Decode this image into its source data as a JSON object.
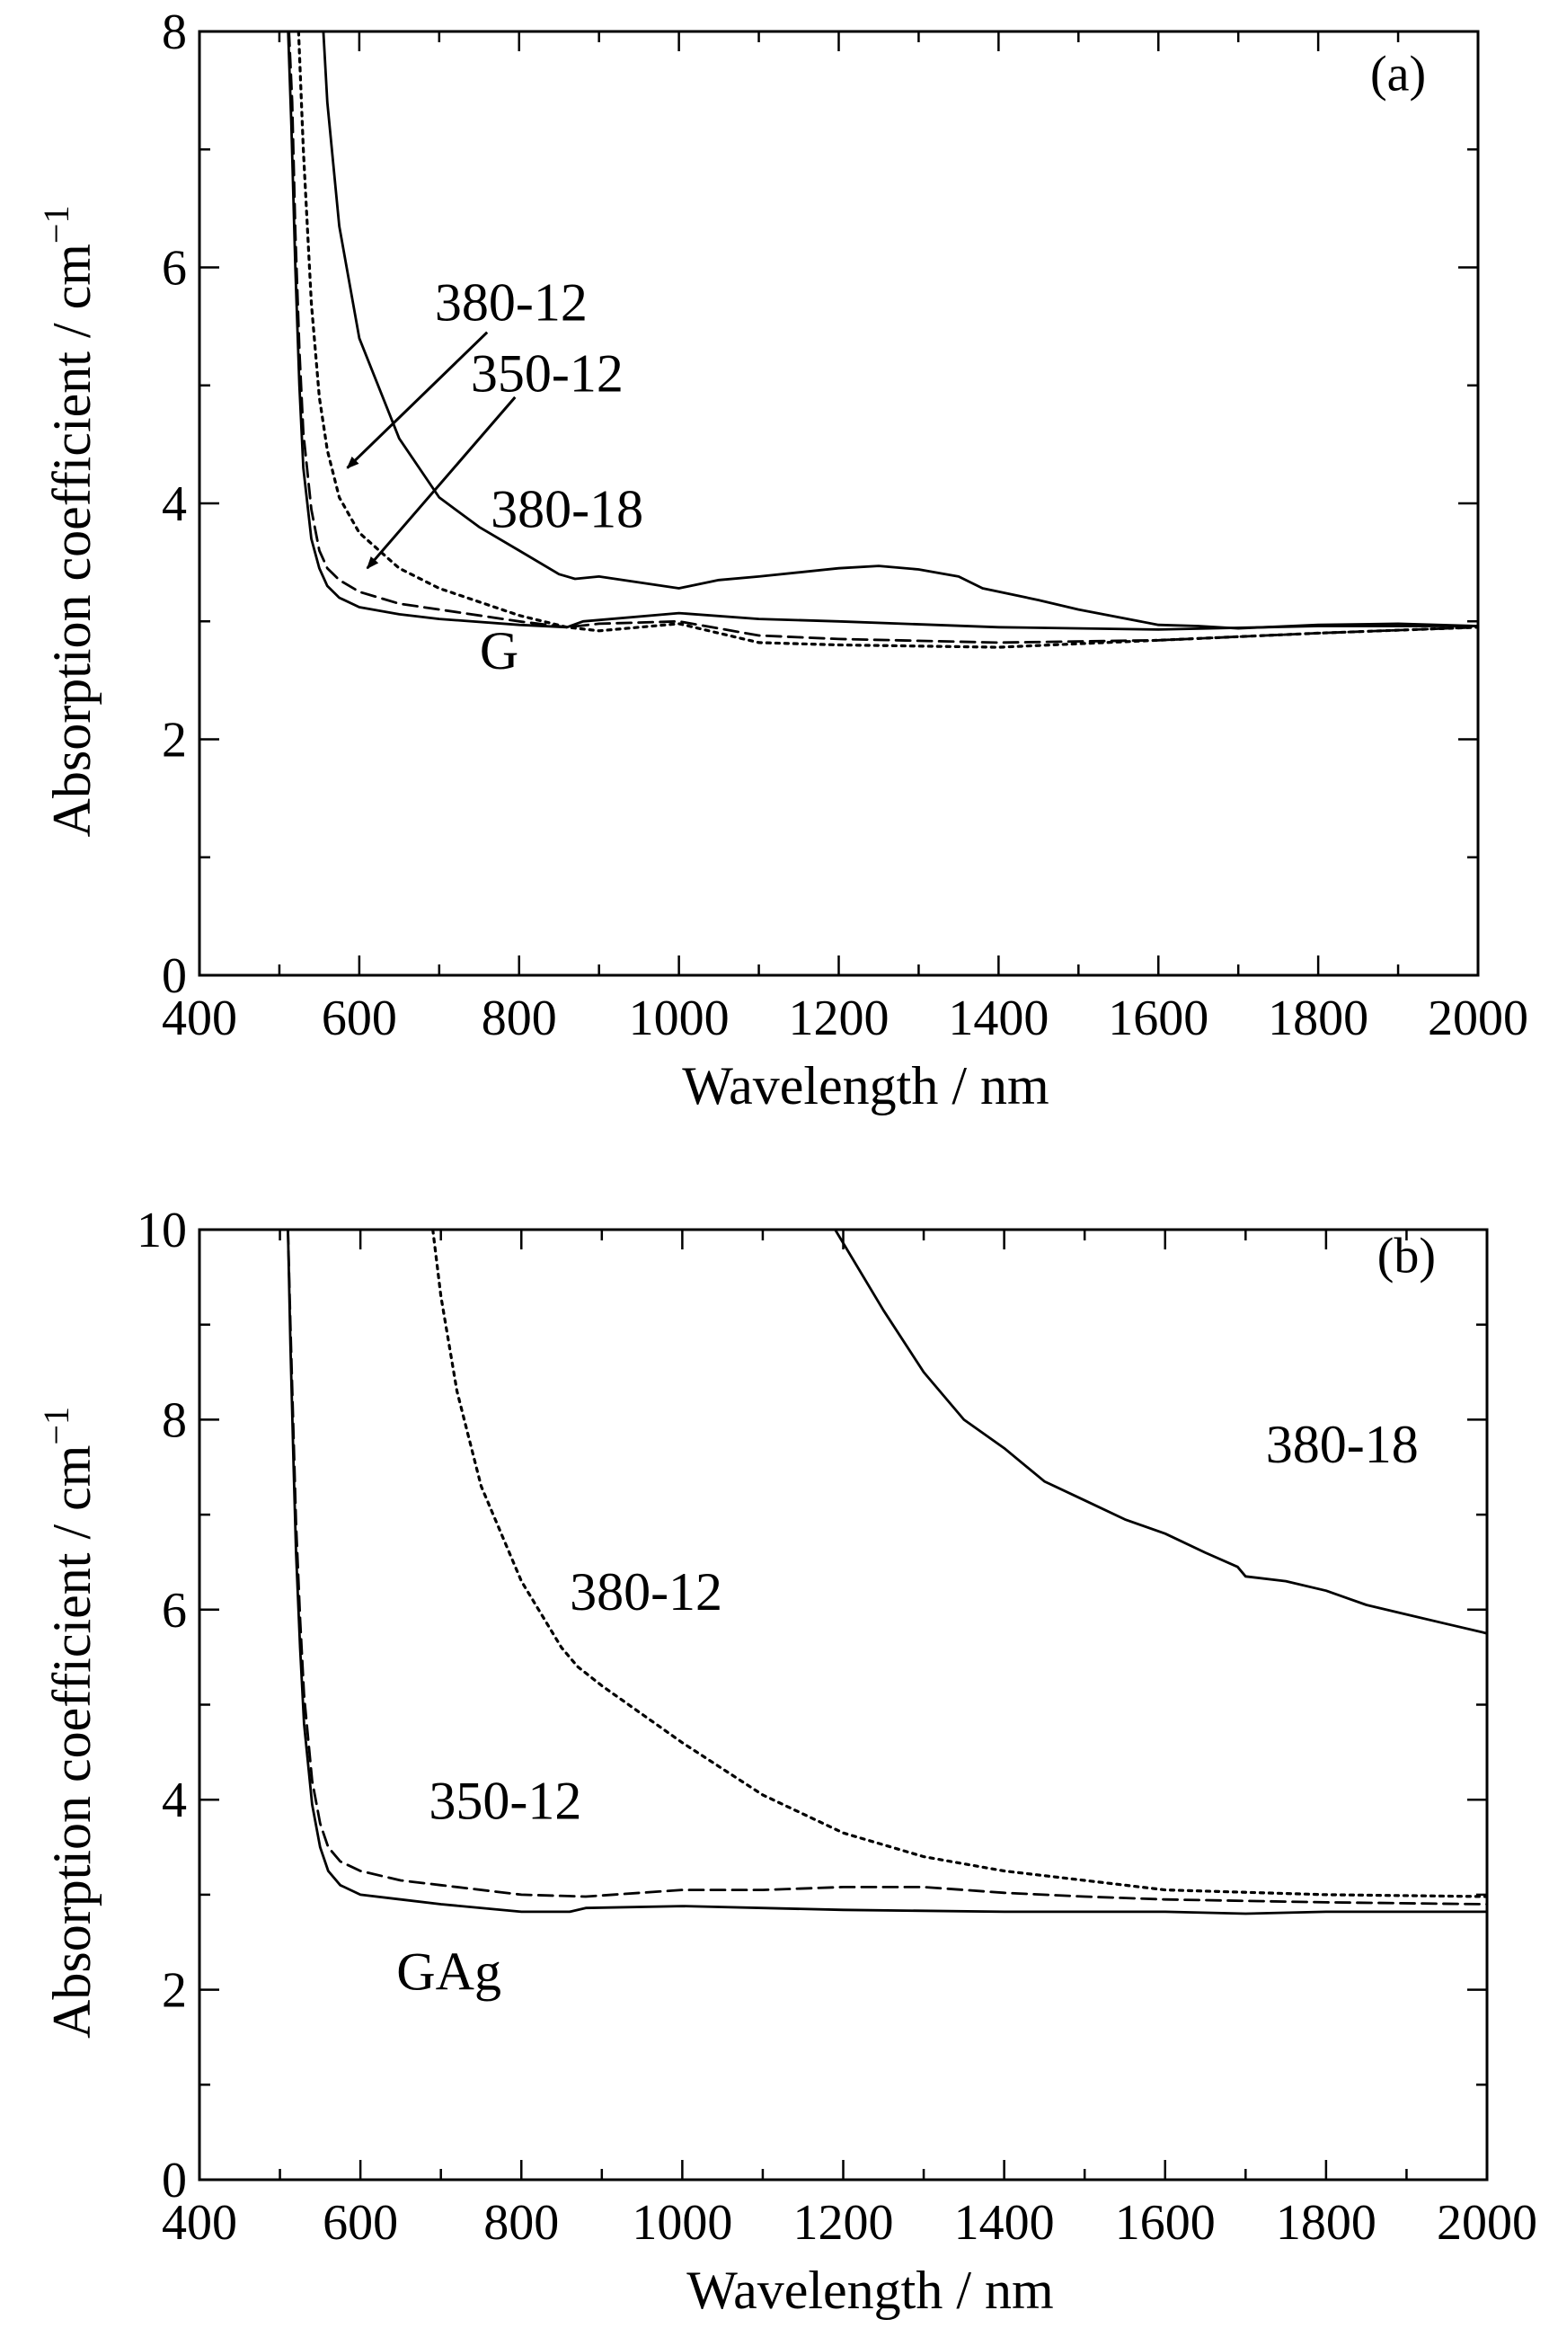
{
  "chart_data": [
    {
      "panel": "(a)",
      "type": "line",
      "xlabel": "Wavelength / nm",
      "ylabel": "Absorption coefficient / cm",
      "ylabel_sup": "−1",
      "xlim": [
        400,
        2000
      ],
      "ylim": [
        0,
        8
      ],
      "x_ticks": [
        "400",
        "600",
        "800",
        "1000",
        "1200",
        "1400",
        "1600",
        "1800",
        "2000"
      ],
      "y_ticks": [
        "0",
        "2",
        "4",
        "6",
        "8"
      ],
      "x_minor_step": 100,
      "y_minor_step": 1,
      "series": [
        {
          "name": "G",
          "style": "solid",
          "x": [
            511,
            515,
            520,
            525,
            530,
            540,
            550,
            560,
            575,
            600,
            650,
            700,
            800,
            860,
            880,
            1000,
            1100,
            1200,
            1400,
            1600,
            1800,
            2000
          ],
          "y": [
            8.0,
            7.2,
            6.0,
            5.0,
            4.3,
            3.7,
            3.45,
            3.3,
            3.2,
            3.12,
            3.06,
            3.02,
            2.97,
            2.95,
            3.0,
            3.07,
            3.02,
            3.0,
            2.95,
            2.93,
            2.96,
            2.96
          ]
        },
        {
          "name": "350-12",
          "style": "dashed",
          "x": [
            512,
            516,
            520,
            525,
            530,
            540,
            550,
            560,
            575,
            600,
            650,
            700,
            800,
            860,
            900,
            1000,
            1100,
            1200,
            1400,
            1600,
            1800,
            2000
          ],
          "y": [
            8.0,
            7.4,
            6.3,
            5.3,
            4.6,
            3.95,
            3.6,
            3.45,
            3.35,
            3.25,
            3.15,
            3.1,
            3.0,
            2.95,
            2.98,
            3.0,
            2.88,
            2.85,
            2.82,
            2.84,
            2.9,
            2.95
          ]
        },
        {
          "name": "380-12",
          "style": "dotted",
          "x": [
            524,
            530,
            540,
            550,
            560,
            575,
            600,
            650,
            700,
            800,
            860,
            900,
            1000,
            1100,
            1200,
            1400,
            1600,
            1800,
            2000
          ],
          "y": [
            8.0,
            7.0,
            5.7,
            4.9,
            4.45,
            4.05,
            3.75,
            3.45,
            3.28,
            3.05,
            2.95,
            2.92,
            2.98,
            2.82,
            2.8,
            2.78,
            2.84,
            2.9,
            2.95
          ]
        },
        {
          "name": "380-18",
          "style": "solid",
          "x": [
            555,
            560,
            575,
            600,
            650,
            700,
            750,
            800,
            850,
            870,
            900,
            1000,
            1050,
            1100,
            1200,
            1250,
            1300,
            1350,
            1380,
            1450,
            1500,
            1600,
            1650,
            1700,
            1800,
            1900,
            2000
          ],
          "y": [
            8.0,
            7.4,
            6.35,
            5.4,
            4.55,
            4.05,
            3.8,
            3.6,
            3.4,
            3.36,
            3.38,
            3.28,
            3.35,
            3.38,
            3.45,
            3.47,
            3.44,
            3.38,
            3.28,
            3.18,
            3.1,
            2.97,
            2.96,
            2.94,
            2.97,
            2.98,
            2.96
          ]
        }
      ],
      "annotations": [
        {
          "text": "380-12",
          "x": 790,
          "y": 5.55
        },
        {
          "text": "350-12",
          "x": 835,
          "y": 4.95
        },
        {
          "text": "380-18",
          "x": 860,
          "y": 3.8
        },
        {
          "text": "G",
          "x": 775,
          "y": 2.6
        },
        {
          "text": "(a)",
          "x": 1900,
          "y": 7.5
        }
      ],
      "arrows": [
        {
          "from": [
            760,
            5.45
          ],
          "to": [
            585,
            4.3
          ]
        },
        {
          "from": [
            795,
            4.9
          ],
          "to": [
            610,
            3.45
          ]
        }
      ]
    },
    {
      "panel": "(b)",
      "type": "line",
      "xlabel": "Wavelength / nm",
      "ylabel": "Absorption coefficient / cm",
      "ylabel_sup": "−1",
      "xlim": [
        400,
        2000
      ],
      "ylim": [
        0,
        10
      ],
      "x_ticks": [
        "400",
        "600",
        "800",
        "1000",
        "1200",
        "1400",
        "1600",
        "1800",
        "2000"
      ],
      "y_ticks": [
        "0",
        "2",
        "4",
        "6",
        "8",
        "10"
      ],
      "x_minor_step": 100,
      "y_minor_step": 1,
      "series": [
        {
          "name": "GAg",
          "style": "solid",
          "x": [
            510,
            513,
            517,
            520,
            525,
            530,
            540,
            550,
            560,
            575,
            600,
            650,
            700,
            800,
            860,
            880,
            1000,
            1200,
            1400,
            1600,
            1700,
            1800,
            2000
          ],
          "y": [
            10.0,
            8.8,
            7.5,
            6.6,
            5.6,
            4.8,
            3.95,
            3.5,
            3.25,
            3.1,
            3.0,
            2.95,
            2.9,
            2.82,
            2.82,
            2.86,
            2.88,
            2.84,
            2.82,
            2.82,
            2.8,
            2.82,
            2.82
          ]
        },
        {
          "name": "350-12",
          "style": "dashed",
          "x": [
            510,
            513,
            517,
            520,
            525,
            530,
            540,
            550,
            560,
            575,
            600,
            650,
            700,
            800,
            880,
            1000,
            1100,
            1200,
            1300,
            1400,
            1500,
            1600,
            1800,
            2000
          ],
          "y": [
            10.0,
            9.0,
            7.8,
            6.9,
            5.9,
            5.1,
            4.2,
            3.75,
            3.5,
            3.35,
            3.25,
            3.15,
            3.1,
            3.0,
            2.98,
            3.05,
            3.05,
            3.08,
            3.08,
            3.02,
            2.98,
            2.95,
            2.92,
            2.9
          ]
        },
        {
          "name": "380-12",
          "style": "dotted",
          "x": [
            690,
            700,
            720,
            750,
            800,
            850,
            870,
            900,
            950,
            1000,
            1100,
            1200,
            1300,
            1400,
            1500,
            1600,
            1800,
            2000
          ],
          "y": [
            10.0,
            9.3,
            8.3,
            7.3,
            6.3,
            5.6,
            5.4,
            5.2,
            4.9,
            4.6,
            4.05,
            3.65,
            3.4,
            3.25,
            3.15,
            3.05,
            3.0,
            2.98
          ]
        },
        {
          "name": "380-18",
          "style": "solid",
          "x": [
            1190,
            1250,
            1300,
            1350,
            1400,
            1450,
            1500,
            1550,
            1600,
            1650,
            1690,
            1700,
            1750,
            1800,
            1850,
            1900,
            1950,
            2000
          ],
          "y": [
            10.0,
            9.15,
            8.5,
            8.0,
            7.7,
            7.35,
            7.15,
            6.95,
            6.8,
            6.6,
            6.45,
            6.35,
            6.3,
            6.2,
            6.05,
            5.95,
            5.85,
            5.75
          ]
        }
      ],
      "annotations": [
        {
          "text": "380-18",
          "x": 1820,
          "y": 7.55
        },
        {
          "text": "380-12",
          "x": 955,
          "y": 6.0
        },
        {
          "text": "350-12",
          "x": 780,
          "y": 3.8
        },
        {
          "text": "GAg",
          "x": 710,
          "y": 2.0
        },
        {
          "text": "(b)",
          "x": 1900,
          "y": 9.55
        }
      ],
      "arrows": []
    }
  ]
}
